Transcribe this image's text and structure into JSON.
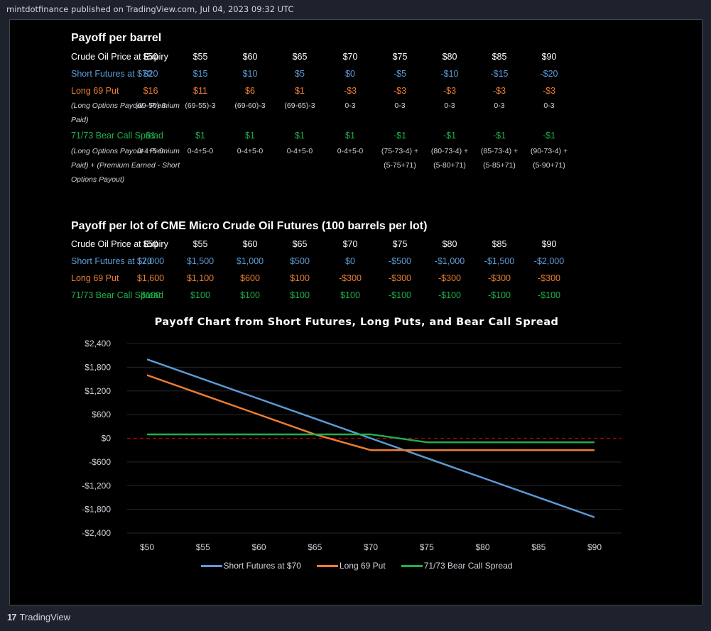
{
  "header": {
    "publish_line": "mintdotfinance published on TradingView.com, Jul 04, 2023 09:32 UTC"
  },
  "footer": {
    "logo_glyph": "17",
    "brand": "TradingView"
  },
  "colors": {
    "short_futures": "#5b9bd5",
    "long_put": "#ed7d31",
    "bear_call": "#1fb04a",
    "zero_line": "#c00000"
  },
  "table_barrel": {
    "title": "Payoff per barrel",
    "price_label": "Crude Oil Price at Expiry",
    "prices": [
      "$50",
      "$55",
      "$60",
      "$65",
      "$70",
      "$75",
      "$80",
      "$85",
      "$90"
    ],
    "short_futures_label": "Short Futures at  $70",
    "short_futures": [
      "$20",
      "$15",
      "$10",
      "$5",
      "$0",
      "-$5",
      "-$10",
      "-$15",
      "-$20"
    ],
    "long_put_label": "Long 69 Put",
    "long_put": [
      "$16",
      "$11",
      "$6",
      "$1",
      "-$3",
      "-$3",
      "-$3",
      "-$3",
      "-$3"
    ],
    "long_put_note": "(Long Options Payout - Premium Paid)",
    "long_put_formulas": [
      "(69-50)-3",
      "(69-55)-3",
      "(69-60)-3",
      "(69-65)-3",
      "0-3",
      "0-3",
      "0-3",
      "0-3",
      "0-3"
    ],
    "bear_call_label": "71/73 Bear Call Spread",
    "bear_call": [
      "$1",
      "$1",
      "$1",
      "$1",
      "$1",
      "-$1",
      "-$1",
      "-$1",
      "-$1"
    ],
    "bear_call_note": "(Long Options Payout - Premium Paid) + (Premium Earned - Short Options Payout)",
    "bear_call_formulas_line1": [
      "0-4+5-0",
      "0-4+5-0",
      "0-4+5-0",
      "0-4+5-0",
      "0-4+5-0",
      "(75-73-4) +",
      "(80-73-4) +",
      "(85-73-4) +",
      "(90-73-4) +"
    ],
    "bear_call_formulas_line2": [
      "",
      "",
      "",
      "",
      "",
      "(5-75+71)",
      "(5-80+71)",
      "(5-85+71)",
      "(5-90+71)"
    ]
  },
  "table_lot": {
    "title": "Payoff per lot of CME Micro Crude Oil Futures (100 barrels per lot)",
    "price_label": "Crude Oil Price at Expiry",
    "prices": [
      "$50",
      "$55",
      "$60",
      "$65",
      "$70",
      "$75",
      "$80",
      "$85",
      "$90"
    ],
    "short_futures_label": "Short Futures at  $70",
    "short_futures": [
      "$2,000",
      "$1,500",
      "$1,000",
      "$500",
      "$0",
      "-$500",
      "-$1,000",
      "-$1,500",
      "-$2,000"
    ],
    "long_put_label": "Long 69 Put",
    "long_put": [
      "$1,600",
      "$1,100",
      "$600",
      "$100",
      "-$300",
      "-$300",
      "-$300",
      "-$300",
      "-$300"
    ],
    "bear_call_label": "71/73 Bear Call Spread",
    "bear_call": [
      "$100",
      "$100",
      "$100",
      "$100",
      "$100",
      "-$100",
      "-$100",
      "-$100",
      "-$100"
    ]
  },
  "chart_data": {
    "type": "line",
    "title": "Payoff Chart from Short Futures, Long Puts, and Bear Call Spread",
    "xlabel": "",
    "ylabel": "",
    "categories": [
      "$50",
      "$55",
      "$60",
      "$65",
      "$70",
      "$75",
      "$80",
      "$85",
      "$90"
    ],
    "x": [
      50,
      55,
      60,
      65,
      70,
      75,
      80,
      85,
      90
    ],
    "yticks": [
      2400,
      1800,
      1200,
      600,
      0,
      -600,
      -1200,
      -1800,
      -2400
    ],
    "ytick_labels": [
      "$2,400",
      "$1,800",
      "$1,200",
      "$600",
      "$0",
      "-$600",
      "-$1,200",
      "-$1,800",
      "-$2,400"
    ],
    "ylim": [
      -2400,
      2400
    ],
    "grid": true,
    "zero_line": "dashed",
    "legend_position": "bottom",
    "series": [
      {
        "name": "Short Futures at  $70",
        "color": "#5b9bd5",
        "values": [
          2000,
          1500,
          1000,
          500,
          0,
          -500,
          -1000,
          -1500,
          -2000
        ]
      },
      {
        "name": "Long 69 Put",
        "color": "#ed7d31",
        "values": [
          1600,
          1100,
          600,
          100,
          -300,
          -300,
          -300,
          -300,
          -300
        ]
      },
      {
        "name": "71/73 Bear Call Spread",
        "color": "#1fb04a",
        "values": [
          100,
          100,
          100,
          100,
          100,
          -100,
          -100,
          -100,
          -100
        ]
      }
    ]
  }
}
